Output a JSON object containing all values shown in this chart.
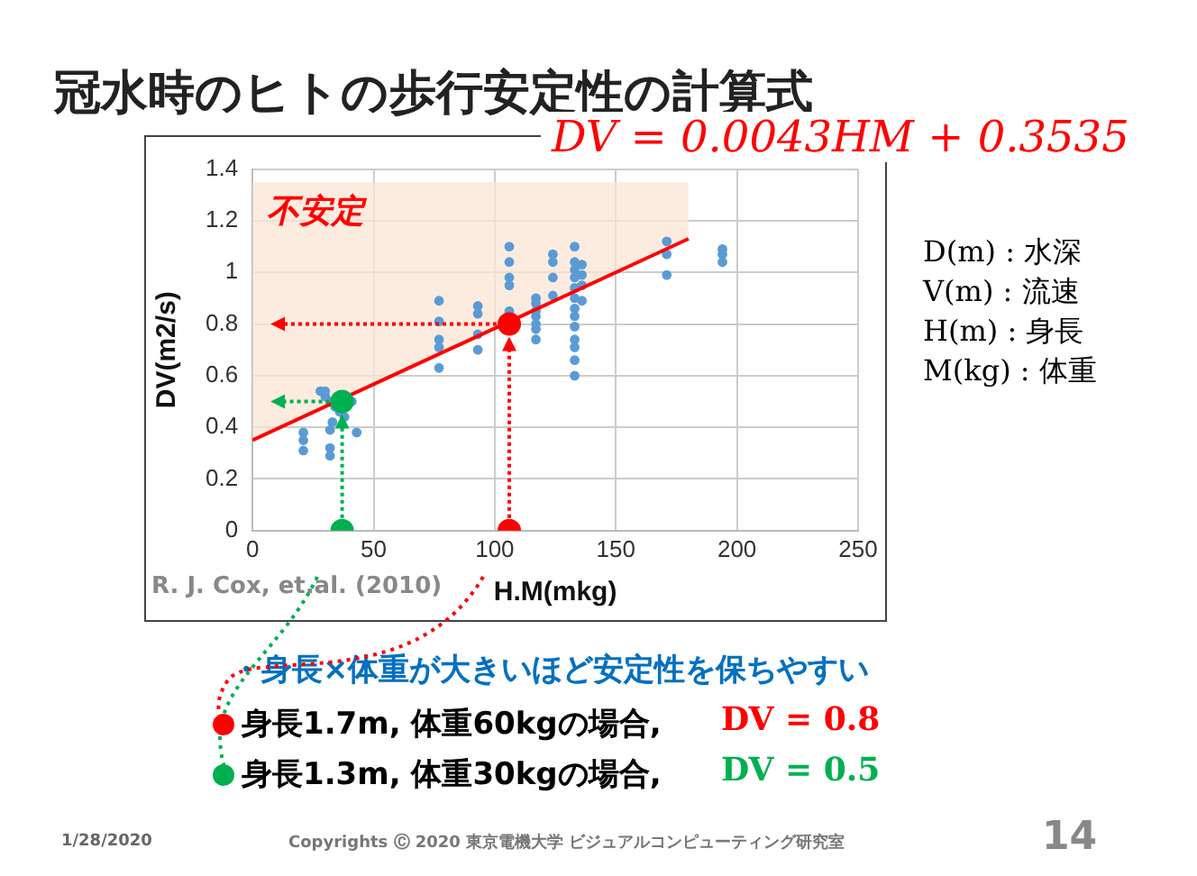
{
  "chart_data": {
    "type": "scatter",
    "title": "冠水時のヒトの歩行安定性の計算式",
    "xlabel": "H.M(mkg)",
    "ylabel": "DV(m2/s)",
    "xlim": [
      0,
      250
    ],
    "xticks": [
      0,
      50,
      100,
      150,
      200,
      250
    ],
    "ylim": [
      0,
      1.4
    ],
    "yticks": [
      0,
      0.2,
      0.4,
      0.6,
      0.8,
      1,
      1.2,
      1.4
    ],
    "grid": true,
    "legend": false,
    "marker": "circle",
    "annotations": [
      "不安定",
      "DV = 0.0043HM + 0.3535",
      "D(m) : 水深",
      "V(m) : 流速",
      "H(m) : 身長",
      "M(kg) : 体重",
      "R. J. Cox, et.al. (2010)",
      "・身長×体重が大きいほど安定性を保ちやすい",
      "身長1.7m, 体重60kgの場合,",
      "DV = 0.8",
      "身長1.3m, 体重30kgの場合,",
      "DV = 0.5",
      "1/28/2020",
      "Copyrights Ⓒ 2020 東京電機大学 ビジュアルコンピューティング研究室",
      "14"
    ],
    "series": [
      {
        "type": "line",
        "marker": "none",
        "color": "#ff0000",
        "x": [
          0,
          180
        ],
        "values": [
          0.35,
          1.13
        ],
        "lower": [
          0.35,
          1.13
        ],
        "upper": [
          1.35,
          1.35
        ]
      },
      {
        "color": "#5b9bd5",
        "x": [
          21,
          21,
          21,
          28,
          30,
          32,
          34,
          36,
          38,
          30,
          33,
          35,
          32,
          32,
          32,
          41,
          43,
          77,
          77,
          77,
          77,
          77,
          93,
          93,
          93,
          93,
          106,
          106,
          106,
          106,
          106,
          106,
          117,
          117,
          117,
          117,
          117,
          117,
          117,
          124,
          124,
          124,
          124,
          133,
          133,
          133,
          133,
          133,
          133,
          133,
          133,
          133,
          133,
          133,
          133,
          133,
          136,
          136,
          136,
          136,
          171,
          171,
          171,
          194,
          194,
          194
        ],
        "values": [
          0.38,
          0.35,
          0.31,
          0.54,
          0.52,
          0.5,
          0.48,
          0.46,
          0.44,
          0.54,
          0.42,
          0.52,
          0.32,
          0.29,
          0.39,
          0.5,
          0.38,
          0.89,
          0.81,
          0.74,
          0.71,
          0.63,
          0.87,
          0.84,
          0.76,
          0.7,
          1.1,
          1.04,
          0.98,
          0.95,
          0.85,
          0.84,
          0.9,
          0.88,
          0.85,
          0.83,
          0.8,
          0.78,
          0.74,
          1.07,
          1.04,
          0.98,
          0.91,
          1.1,
          1.04,
          1.01,
          0.98,
          0.94,
          0.9,
          0.86,
          0.83,
          0.79,
          0.74,
          0.71,
          0.66,
          0.6,
          1.03,
          0.99,
          0.95,
          0.89,
          1.12,
          1.07,
          0.99,
          1.09,
          1.07,
          1.04
        ]
      },
      {
        "color": "#ff0000",
        "x": [
          106,
          106
        ],
        "values": [
          0.8,
          0
        ]
      },
      {
        "color": "#00b050",
        "x": [
          37,
          37
        ],
        "values": [
          0.5,
          0
        ]
      }
    ]
  }
}
